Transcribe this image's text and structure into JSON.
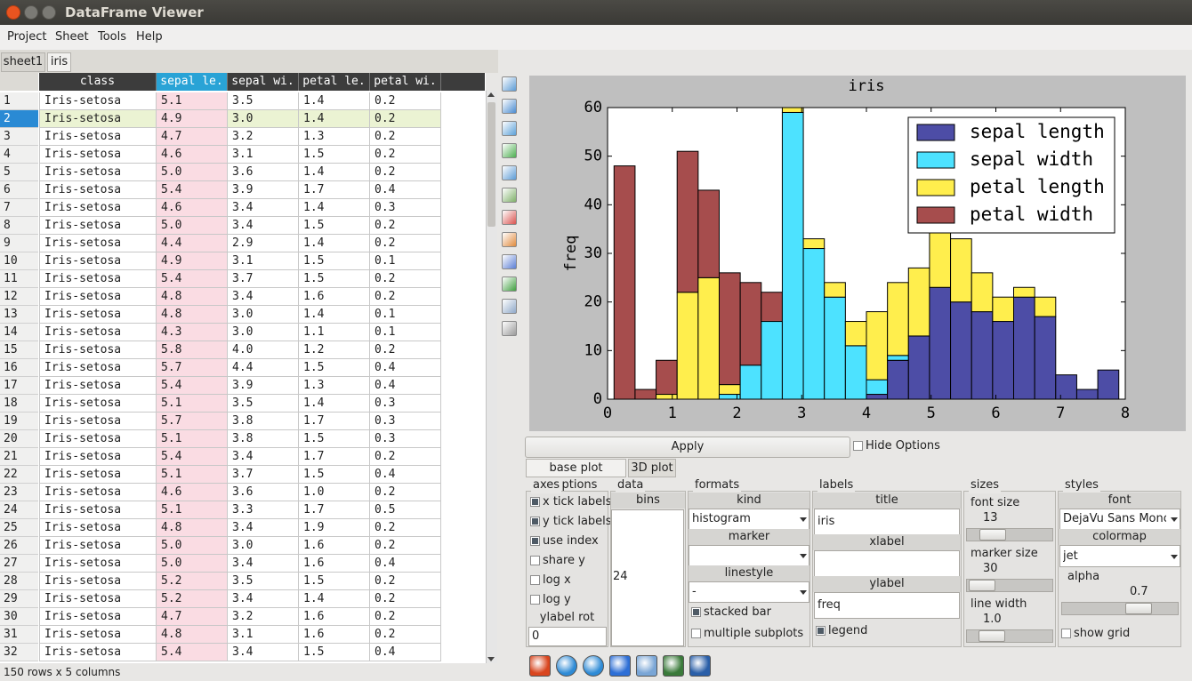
{
  "window": {
    "title": "DataFrame Viewer"
  },
  "menu": [
    "Project",
    "Sheet",
    "Tools",
    "Help"
  ],
  "sheet_tabs": [
    "sheet1",
    "iris"
  ],
  "table": {
    "columns": [
      "class",
      "sepal le.",
      "sepal wi.",
      "petal le.",
      "petal wi."
    ],
    "selected_column": 1,
    "selected_row": 1,
    "rows": [
      [
        "1",
        "Iris-setosa",
        "5.1",
        "3.5",
        "1.4",
        "0.2"
      ],
      [
        "2",
        "Iris-setosa",
        "4.9",
        "3.0",
        "1.4",
        "0.2"
      ],
      [
        "3",
        "Iris-setosa",
        "4.7",
        "3.2",
        "1.3",
        "0.2"
      ],
      [
        "4",
        "Iris-setosa",
        "4.6",
        "3.1",
        "1.5",
        "0.2"
      ],
      [
        "5",
        "Iris-setosa",
        "5.0",
        "3.6",
        "1.4",
        "0.2"
      ],
      [
        "6",
        "Iris-setosa",
        "5.4",
        "3.9",
        "1.7",
        "0.4"
      ],
      [
        "7",
        "Iris-setosa",
        "4.6",
        "3.4",
        "1.4",
        "0.3"
      ],
      [
        "8",
        "Iris-setosa",
        "5.0",
        "3.4",
        "1.5",
        "0.2"
      ],
      [
        "9",
        "Iris-setosa",
        "4.4",
        "2.9",
        "1.4",
        "0.2"
      ],
      [
        "10",
        "Iris-setosa",
        "4.9",
        "3.1",
        "1.5",
        "0.1"
      ],
      [
        "11",
        "Iris-setosa",
        "5.4",
        "3.7",
        "1.5",
        "0.2"
      ],
      [
        "12",
        "Iris-setosa",
        "4.8",
        "3.4",
        "1.6",
        "0.2"
      ],
      [
        "13",
        "Iris-setosa",
        "4.8",
        "3.0",
        "1.4",
        "0.1"
      ],
      [
        "14",
        "Iris-setosa",
        "4.3",
        "3.0",
        "1.1",
        "0.1"
      ],
      [
        "15",
        "Iris-setosa",
        "5.8",
        "4.0",
        "1.2",
        "0.2"
      ],
      [
        "16",
        "Iris-setosa",
        "5.7",
        "4.4",
        "1.5",
        "0.4"
      ],
      [
        "17",
        "Iris-setosa",
        "5.4",
        "3.9",
        "1.3",
        "0.4"
      ],
      [
        "18",
        "Iris-setosa",
        "5.1",
        "3.5",
        "1.4",
        "0.3"
      ],
      [
        "19",
        "Iris-setosa",
        "5.7",
        "3.8",
        "1.7",
        "0.3"
      ],
      [
        "20",
        "Iris-setosa",
        "5.1",
        "3.8",
        "1.5",
        "0.3"
      ],
      [
        "21",
        "Iris-setosa",
        "5.4",
        "3.4",
        "1.7",
        "0.2"
      ],
      [
        "22",
        "Iris-setosa",
        "5.1",
        "3.7",
        "1.5",
        "0.4"
      ],
      [
        "23",
        "Iris-setosa",
        "4.6",
        "3.6",
        "1.0",
        "0.2"
      ],
      [
        "24",
        "Iris-setosa",
        "5.1",
        "3.3",
        "1.7",
        "0.5"
      ],
      [
        "25",
        "Iris-setosa",
        "4.8",
        "3.4",
        "1.9",
        "0.2"
      ],
      [
        "26",
        "Iris-setosa",
        "5.0",
        "3.0",
        "1.6",
        "0.2"
      ],
      [
        "27",
        "Iris-setosa",
        "5.0",
        "3.4",
        "1.6",
        "0.4"
      ],
      [
        "28",
        "Iris-setosa",
        "5.2",
        "3.5",
        "1.5",
        "0.2"
      ],
      [
        "29",
        "Iris-setosa",
        "5.2",
        "3.4",
        "1.4",
        "0.2"
      ],
      [
        "30",
        "Iris-setosa",
        "4.7",
        "3.2",
        "1.6",
        "0.2"
      ],
      [
        "31",
        "Iris-setosa",
        "4.8",
        "3.1",
        "1.6",
        "0.2"
      ],
      [
        "32",
        "Iris-setosa",
        "5.4",
        "3.4",
        "1.5",
        "0.4"
      ]
    ]
  },
  "status": "150 rows x 5 columns",
  "chart_data": {
    "type": "histogram",
    "stacked": true,
    "title": "iris",
    "ylabel": "freq",
    "legend": "upper right",
    "bins": [
      0.1,
      0.425,
      0.75,
      1.075,
      1.4,
      1.725,
      2.05,
      2.375,
      2.7,
      3.025,
      3.35,
      3.675,
      4.0,
      4.325,
      4.65,
      4.975,
      5.3,
      5.625,
      5.95,
      6.275,
      6.6,
      6.925,
      7.25,
      7.575,
      7.9
    ],
    "series": [
      {
        "name": "sepal length",
        "color": "#4d4da6",
        "values": [
          0,
          0,
          0,
          0,
          0,
          0,
          0,
          0,
          0,
          0,
          0,
          0,
          1,
          8,
          13,
          23,
          20,
          18,
          16,
          21,
          17,
          5,
          2,
          6
        ]
      },
      {
        "name": "sepal width",
        "color": "#4de2ff",
        "values": [
          0,
          0,
          0,
          0,
          0,
          1,
          7,
          16,
          59,
          31,
          21,
          11,
          3,
          1,
          0,
          0,
          0,
          0,
          0,
          0,
          0,
          0,
          0,
          0
        ]
      },
      {
        "name": "petal length",
        "color": "#ffee4d",
        "values": [
          0,
          0,
          1,
          22,
          25,
          2,
          0,
          0,
          1,
          2,
          3,
          5,
          14,
          15,
          14,
          14,
          13,
          8,
          5,
          2,
          4,
          0,
          0,
          0
        ]
      },
      {
        "name": "petal width",
        "color": "#a64d4d",
        "values": [
          48,
          2,
          7,
          29,
          18,
          23,
          17,
          6,
          0,
          0,
          0,
          0,
          0,
          0,
          0,
          0,
          0,
          0,
          0,
          0,
          0,
          0,
          0,
          0
        ]
      }
    ],
    "xlim": [
      0,
      8
    ],
    "ylim": [
      0,
      60
    ],
    "xticks": [
      0,
      1,
      2,
      3,
      4,
      5,
      6,
      7,
      8
    ],
    "yticks": [
      0,
      10,
      20,
      30,
      40,
      50,
      60
    ]
  },
  "options": {
    "apply": "Apply",
    "hide_options": {
      "label": "Hide Options",
      "checked": false
    },
    "tabs": [
      "base plot options",
      "3D plot"
    ],
    "axes": {
      "title": "axes",
      "checks": [
        {
          "label": "x tick labels",
          "checked": true
        },
        {
          "label": "y tick labels",
          "checked": true
        },
        {
          "label": "use index",
          "checked": true
        },
        {
          "label": "share y",
          "checked": false
        },
        {
          "label": "log x",
          "checked": false
        },
        {
          "label": "log y",
          "checked": false
        }
      ],
      "ylabel_rot": {
        "label": "ylabel rot",
        "value": "0"
      }
    },
    "data": {
      "title": "data",
      "bins": {
        "label": "bins",
        "value": "24"
      }
    },
    "formats": {
      "title": "formats",
      "kind": {
        "label": "kind",
        "value": "histogram"
      },
      "marker": {
        "label": "marker"
      },
      "linestyle": {
        "label": "linestyle",
        "value": "-"
      },
      "checks": [
        {
          "label": "stacked bar",
          "checked": true
        },
        {
          "label": "multiple subplots",
          "checked": false
        }
      ]
    },
    "labels": {
      "title": "labels",
      "fields": [
        {
          "label": "title",
          "value": "iris"
        },
        {
          "label": "xlabel"
        },
        {
          "label": "ylabel",
          "value": "freq"
        }
      ],
      "checks": [
        {
          "label": "legend",
          "checked": true
        }
      ]
    },
    "sizes": {
      "title": "sizes",
      "sliders": [
        {
          "label": "font size",
          "value": "13"
        },
        {
          "label": "marker size",
          "value": "30"
        },
        {
          "label": "line width",
          "value": "1.0"
        }
      ]
    },
    "styles": {
      "title": "styles",
      "font": {
        "label": "font",
        "value": "DejaVu Sans Mono"
      },
      "colormap": {
        "label": "colormap",
        "value": "jet"
      },
      "alpha": {
        "label": "alpha",
        "value": "0.7"
      },
      "checks": [
        {
          "label": "show grid",
          "checked": false
        }
      ]
    }
  }
}
